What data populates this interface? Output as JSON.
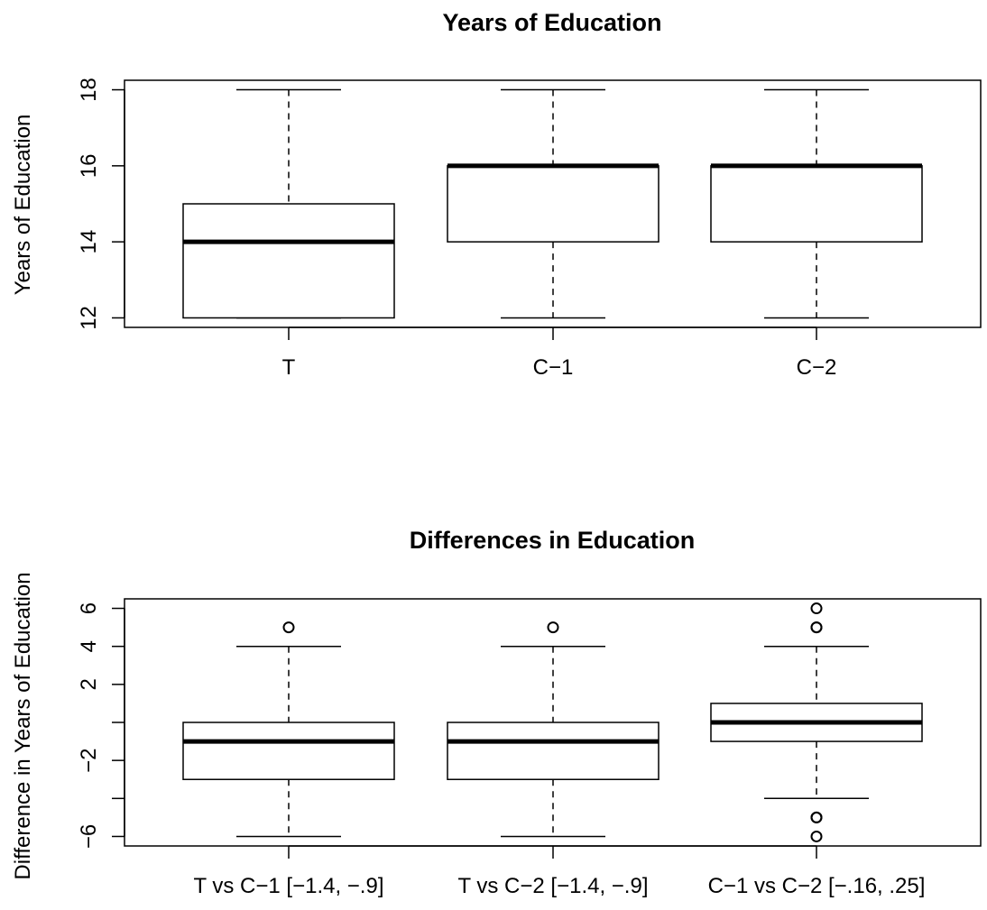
{
  "chart_data": [
    {
      "type": "box",
      "title": "Years of Education",
      "xlabel": "",
      "ylabel": "Years of Education",
      "ylim": [
        11.75,
        18.25
      ],
      "yticks": [
        12,
        14,
        16,
        18
      ],
      "ytick_labels": [
        "12",
        "14",
        "16",
        "18"
      ],
      "categories": [
        "T",
        "C−1",
        "C−2"
      ],
      "boxes": [
        {
          "category": "T",
          "whisker_low": 12,
          "q1": 12,
          "median": 14,
          "q3": 15,
          "whisker_high": 18,
          "outliers": []
        },
        {
          "category": "C−1",
          "whisker_low": 12,
          "q1": 14,
          "median": 16,
          "q3": 16,
          "whisker_high": 18,
          "outliers": []
        },
        {
          "category": "C−2",
          "whisker_low": 12,
          "q1": 14,
          "median": 16,
          "q3": 16,
          "whisker_high": 18,
          "outliers": []
        }
      ],
      "grid": false
    },
    {
      "type": "box",
      "title": "Differences in Education",
      "xlabel": "",
      "ylabel": "Difference in Years of Education",
      "ylim": [
        -6.5,
        6.5
      ],
      "yticks": [
        -6,
        -4,
        -2,
        0,
        2,
        4,
        6
      ],
      "ytick_labels": [
        "−6",
        "",
        "−2",
        "",
        "2",
        "4",
        "6"
      ],
      "categories": [
        "T vs C−1  [−1.4, −.9]",
        "T vs C−2  [−1.4, −.9]",
        "C−1 vs C−2  [−.16, .25]"
      ],
      "boxes": [
        {
          "category": "T vs C-1",
          "whisker_low": -6,
          "q1": -3,
          "median": -1,
          "q3": 0,
          "whisker_high": 4,
          "outliers": [
            5
          ]
        },
        {
          "category": "T vs C-2",
          "whisker_low": -6,
          "q1": -3,
          "median": -1,
          "q3": 0,
          "whisker_high": 4,
          "outliers": [
            5
          ]
        },
        {
          "category": "C-1 vs C-2",
          "whisker_low": -4,
          "q1": -1,
          "median": 0,
          "q3": 1,
          "whisker_high": 4,
          "outliers": [
            6,
            5,
            5,
            -5,
            -5,
            -6
          ]
        }
      ],
      "grid": false
    }
  ]
}
